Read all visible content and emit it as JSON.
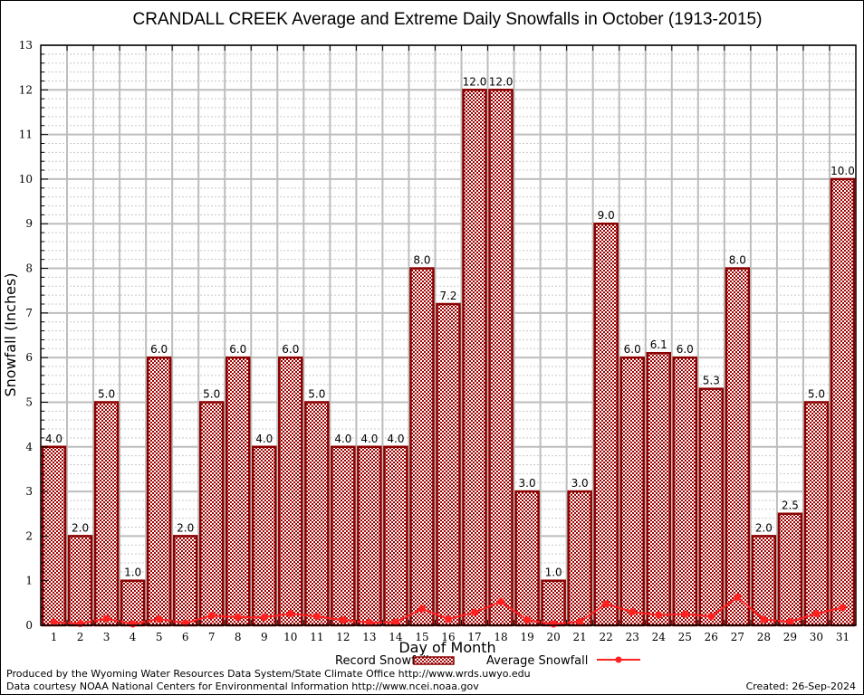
{
  "chart_data": {
    "type": "bar",
    "title": "CRANDALL CREEK Average and Extreme Daily Snowfalls in October (1913-2015)",
    "xlabel": "Day of Month",
    "ylabel": "Snowfall (Inches)",
    "ylim": [
      0,
      13
    ],
    "yticks": [
      "0",
      "1",
      "2",
      "3",
      "4",
      "5",
      "6",
      "7",
      "8",
      "9",
      "10",
      "11",
      "12",
      "13"
    ],
    "grid": true,
    "categories": [
      "1",
      "2",
      "3",
      "4",
      "5",
      "6",
      "7",
      "8",
      "9",
      "10",
      "11",
      "12",
      "13",
      "14",
      "15",
      "16",
      "17",
      "18",
      "19",
      "20",
      "21",
      "22",
      "23",
      "24",
      "25",
      "26",
      "27",
      "28",
      "29",
      "30",
      "31"
    ],
    "series": [
      {
        "name": "Record Snowfall",
        "type": "bar",
        "color": "#8b0000",
        "values": [
          4.0,
          2.0,
          5.0,
          1.0,
          6.0,
          2.0,
          5.0,
          6.0,
          4.0,
          6.0,
          5.0,
          4.0,
          4.0,
          4.0,
          8.0,
          7.2,
          12.0,
          12.0,
          3.0,
          1.0,
          3.0,
          9.0,
          6.0,
          6.1,
          6.0,
          5.3,
          8.0,
          2.0,
          2.5,
          5.0,
          10.0
        ],
        "labels": [
          "4.0",
          "2.0",
          "5.0",
          "1.0",
          "6.0",
          "2.0",
          "5.0",
          "6.0",
          "4.0",
          "6.0",
          "5.0",
          "4.0",
          "4.0",
          "4.0",
          "8.0",
          "7.2",
          "12.0",
          "12.0",
          "3.0",
          "1.0",
          "3.0",
          "9.0",
          "6.0",
          "6.1",
          "6.0",
          "5.3",
          "8.0",
          "2.0",
          "2.5",
          "5.0",
          "10.0"
        ]
      },
      {
        "name": "Average Snowfall",
        "type": "line",
        "color": "#ff2020",
        "values": [
          0.07,
          0.04,
          0.15,
          0.03,
          0.14,
          0.05,
          0.22,
          0.18,
          0.18,
          0.26,
          0.2,
          0.12,
          0.06,
          0.07,
          0.37,
          0.14,
          0.29,
          0.53,
          0.12,
          0.03,
          0.08,
          0.48,
          0.3,
          0.23,
          0.25,
          0.2,
          0.63,
          0.13,
          0.08,
          0.26,
          0.4
        ]
      }
    ],
    "legend": {
      "placement": "bottom-center",
      "entries": [
        "Record Snowfall",
        "Average Snowfall"
      ]
    }
  },
  "footer": {
    "line1": "Produced by the Wyoming Water Resources Data System/State Climate Office http://www.wrds.uwyo.edu",
    "line2": "Data courtesy NOAA National Centers for Environmental Information http://www.ncei.noaa.gov",
    "created": "Created: 26-Sep-2024"
  }
}
